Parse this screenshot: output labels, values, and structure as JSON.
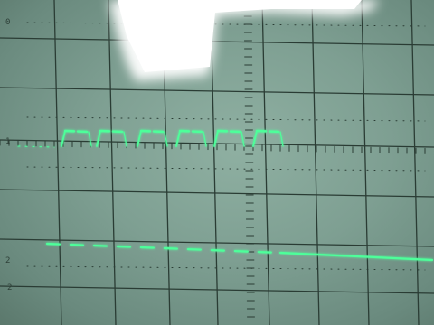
{
  "display": {
    "phosphor_color": "#4dff9a",
    "graticule_color": "#2a3c34",
    "glare_color": "#ffffff",
    "screen_color": "#86a798"
  },
  "markers": {
    "left_top": "0",
    "left_ch1": "1",
    "left_ch2": "2",
    "left_low": "2"
  },
  "traces": {
    "channel1": {
      "type": "pulse_train",
      "dashed": true,
      "pulse_count": 6
    },
    "channel2": {
      "type": "flat",
      "dashed": true
    }
  }
}
